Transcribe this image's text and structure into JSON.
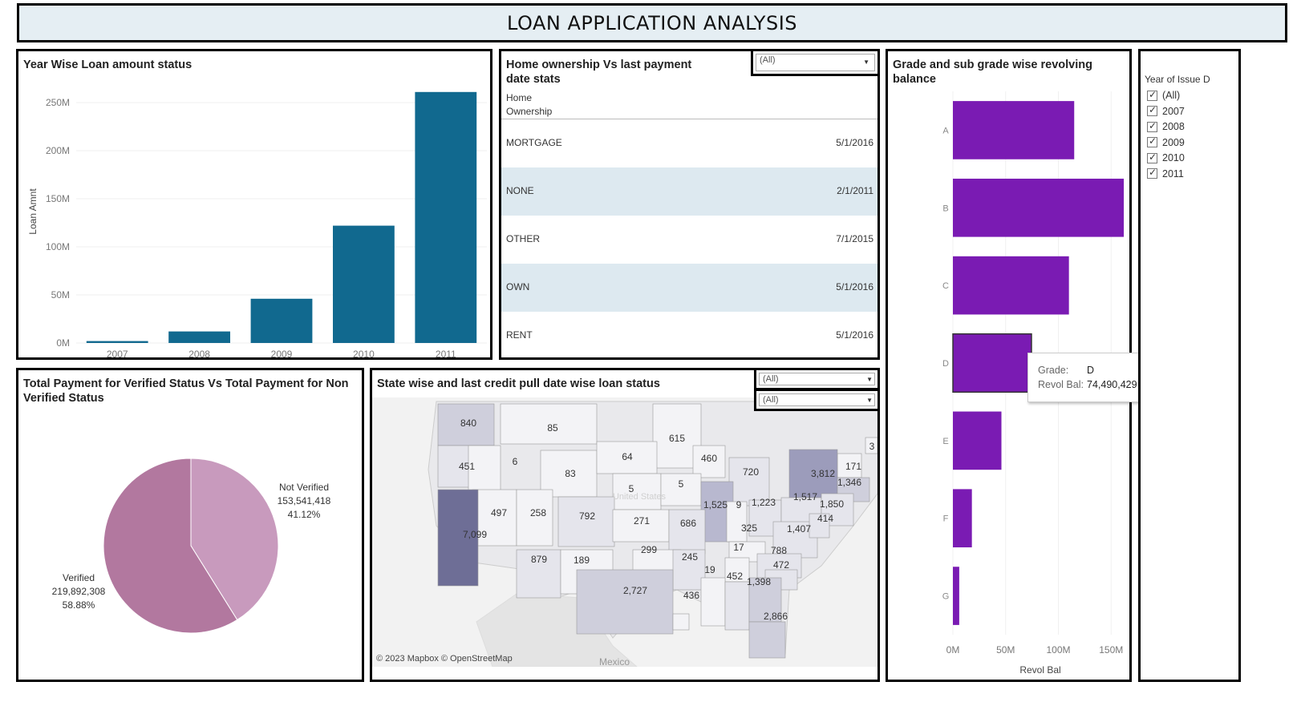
{
  "dashboard": {
    "title": "LOAN APPLICATION ANALYSIS"
  },
  "colors": {
    "bar_blue": "#11698f",
    "bar_purple": "#7a1bb3",
    "pie_verified": "#b2789f",
    "pie_not_verified": "#c89abd",
    "map_land": "#e9e9ec",
    "map_water": "#f2f2f2"
  },
  "year_chart": {
    "title": "Year Wise Loan amount status",
    "chart_data": {
      "type": "bar",
      "title": "Year Wise Loan amount status",
      "ylabel": "Loan Amnt",
      "categories": [
        "2007",
        "2008",
        "2009",
        "2010",
        "2011"
      ],
      "values": [
        2,
        12,
        46,
        122,
        261
      ],
      "ylim": [
        0,
        270
      ],
      "yticks": [
        "0M",
        "50M",
        "100M",
        "150M",
        "200M",
        "250M"
      ],
      "ytick_values": [
        0,
        50,
        100,
        150,
        200,
        250
      ],
      "grid": true
    }
  },
  "home_table": {
    "title": "Home ownership Vs last payment date stats",
    "filter_value": "(All)",
    "column_header": "Home Ownership",
    "rows": [
      {
        "ownership": "MORTGAGE",
        "date": "5/1/2016"
      },
      {
        "ownership": "NONE",
        "date": "2/1/2011"
      },
      {
        "ownership": "OTHER",
        "date": "7/1/2015"
      },
      {
        "ownership": "OWN",
        "date": "5/1/2016"
      },
      {
        "ownership": "RENT",
        "date": "5/1/2016"
      }
    ]
  },
  "grade_chart": {
    "title": "Grade and sub grade wise revolving balance",
    "chart_data": {
      "type": "bar",
      "orientation": "horizontal",
      "categories": [
        "A",
        "B",
        "C",
        "D",
        "E",
        "F",
        "G"
      ],
      "values": [
        115,
        162,
        110,
        74.49,
        46,
        18,
        6
      ],
      "xlabel": "Revol Bal",
      "xlim": [
        0,
        165
      ],
      "xticks": [
        "0M",
        "50M",
        "100M",
        "150M"
      ],
      "xtick_values": [
        0,
        50,
        100,
        150
      ]
    },
    "tooltip": {
      "grade_label": "Grade:",
      "grade_value": "D",
      "bal_label": "Revol Bal:",
      "bal_value": "74,490,429"
    }
  },
  "year_filter": {
    "title": "Year of Issue D",
    "options": [
      "(All)",
      "2007",
      "2008",
      "2009",
      "2010",
      "2011"
    ]
  },
  "pie_chart": {
    "title": "Total Payment for Verified Status Vs Total Payment for Non Verified Status",
    "chart_data": {
      "type": "pie",
      "slices": [
        {
          "name": "Not Verified",
          "value": 153541418,
          "value_label": "153,541,418",
          "percent_label": "41.12%",
          "percent": 41.12
        },
        {
          "name": "Verified",
          "value": 219892308,
          "value_label": "219,892,308",
          "percent_label": "58.88%",
          "percent": 58.88
        }
      ]
    }
  },
  "map_panel": {
    "title": "State wise and last credit pull date wise loan status",
    "filter1": "(All)",
    "filter2": "(All)",
    "attribution": "© 2023 Mapbox  © OpenStreetMap",
    "country_label_mexico": "Mexico",
    "country_label_us": "United States",
    "state_values": [
      "840",
      "85",
      "615",
      "451",
      "6",
      "83",
      "64",
      "460",
      "3",
      "720",
      "171",
      "3,812",
      "1,346",
      "5",
      "5",
      "497",
      "258",
      "792",
      "1,525",
      "9",
      "1,223",
      "1,517",
      "1,850",
      "7,099",
      "271",
      "686",
      "325",
      "1,407",
      "414",
      "299",
      "879",
      "189",
      "245",
      "17",
      "788",
      "472",
      "19",
      "452",
      "1,398",
      "2,727",
      "436",
      "2,866"
    ]
  }
}
